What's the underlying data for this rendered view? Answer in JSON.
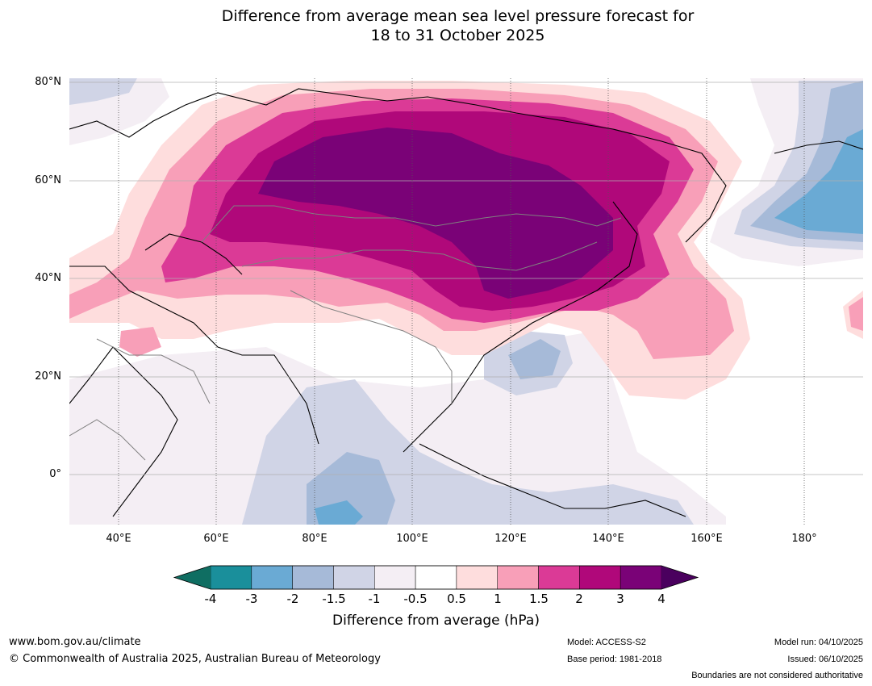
{
  "title": {
    "line1": "Difference from average mean sea level pressure forecast for",
    "line2": "18 to 31 October 2025"
  },
  "map": {
    "lat_labels": [
      "80°N",
      "60°N",
      "40°N",
      "20°N",
      "0°"
    ],
    "lon_labels": [
      "40°E",
      "60°E",
      "80°E",
      "100°E",
      "120°E",
      "140°E",
      "160°E",
      "180°"
    ],
    "lat_range": [
      -10,
      80
    ],
    "lon_range": [
      30,
      192
    ]
  },
  "colorbar": {
    "ticks": [
      "-4",
      "-3",
      "-2",
      "-1.5",
      "-1",
      "-0.5",
      "0.5",
      "1",
      "1.5",
      "2",
      "3",
      "4"
    ],
    "colors": [
      "#1a8f9b",
      "#6aaad4",
      "#a6bad8",
      "#d0d4e6",
      "#f4eef4",
      "#ffffff",
      "#fedddd",
      "#f89fb8",
      "#db3a96",
      "#b0087a",
      "#7a0277"
    ],
    "extend_low_color": "#0f6e62",
    "extend_high_color": "#4a005e",
    "label": "Difference from average (hPa)"
  },
  "footer": {
    "website": "www.bom.gov.au/climate",
    "copyright": "© Commonwealth of Australia 2025, Australian Bureau of Meteorology",
    "model": "Model: ACCESS-S2",
    "base_period": "Base period: 1981-2018",
    "model_run": "Model run: 04/10/2025",
    "issued": "Issued: 06/10/2025",
    "disclaimer": "Boundaries are not considered authoritative"
  }
}
